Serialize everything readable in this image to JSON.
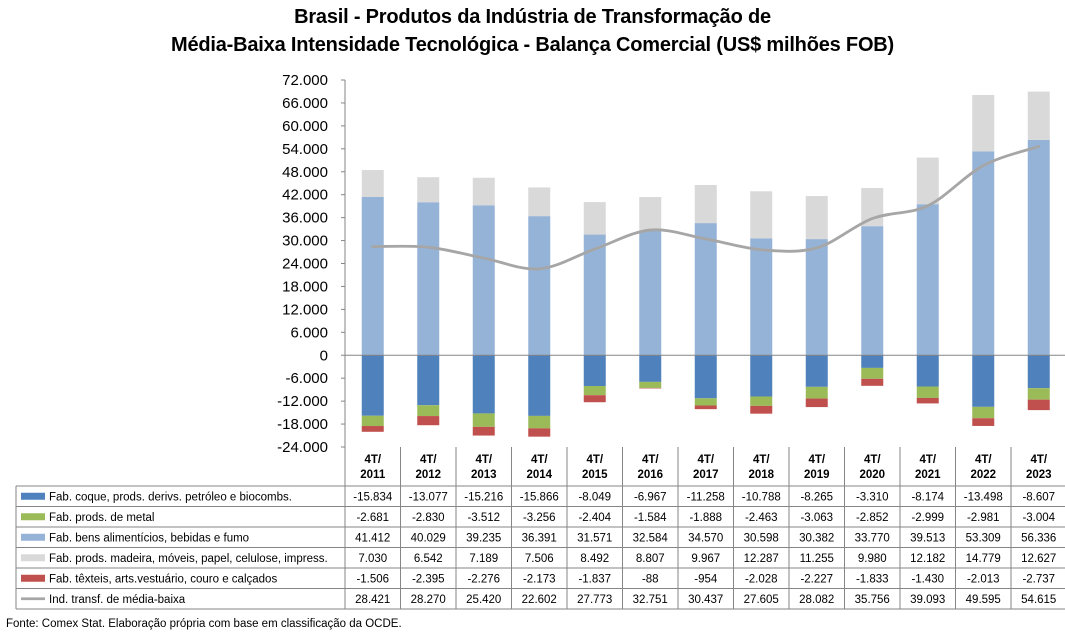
{
  "title_line1": "Brasil - Produtos da Indústria de Transformação de",
  "title_line2": "Média-Baixa Intensidade Tecnológica - Balança Comercial (US$ milhões FOB)",
  "source": "Fonte: Comex Stat. Elaboração própria com base em classificação da OCDE.",
  "chart_data": {
    "type": "bar",
    "stacked": true,
    "categories": [
      [
        "4T/",
        "2011"
      ],
      [
        "4T/",
        "2012"
      ],
      [
        "4T/",
        "2013"
      ],
      [
        "4T/",
        "2014"
      ],
      [
        "4T/",
        "2015"
      ],
      [
        "4T/",
        "2016"
      ],
      [
        "4T/",
        "2017"
      ],
      [
        "4T/",
        "2018"
      ],
      [
        "4T/",
        "2019"
      ],
      [
        "4T/",
        "2020"
      ],
      [
        "4T/",
        "2021"
      ],
      [
        "4T/",
        "2022"
      ],
      [
        "4T/",
        "2023"
      ]
    ],
    "ylim": [
      -24000,
      72000
    ],
    "yticks": [
      72000,
      66000,
      60000,
      54000,
      48000,
      42000,
      36000,
      30000,
      24000,
      18000,
      12000,
      6000,
      0,
      -6000,
      -12000,
      -18000,
      -24000
    ],
    "ytick_labels": [
      "72.000",
      "66.000",
      "60.000",
      "54.000",
      "48.000",
      "42.000",
      "36.000",
      "30.000",
      "24.000",
      "18.000",
      "12.000",
      "6.000",
      "0",
      "-6.000",
      "-12.000",
      "-18.000",
      "-24.000"
    ],
    "series": [
      {
        "name": "Fab. coque, prods. derivs. petróleo e biocombs.",
        "kind": "bar",
        "color": "#4f81bd",
        "values": [
          -15834,
          -13077,
          -15216,
          -15866,
          -8049,
          -6967,
          -11258,
          -10788,
          -8265,
          -3310,
          -8174,
          -13498,
          -8607
        ],
        "labels": [
          "-15.834",
          "-13.077",
          "-15.216",
          "-15.866",
          "-8.049",
          "-6.967",
          "-11.258",
          "-10.788",
          "-8.265",
          "-3.310",
          "-8.174",
          "-13.498",
          "-8.607"
        ]
      },
      {
        "name": "Fab. prods. de metal",
        "kind": "bar",
        "color": "#9bbb59",
        "values": [
          -2681,
          -2830,
          -3512,
          -3256,
          -2404,
          -1584,
          -1888,
          -2463,
          -3063,
          -2852,
          -2999,
          -2981,
          -3004
        ],
        "labels": [
          "-2.681",
          "-2.830",
          "-3.512",
          "-3.256",
          "-2.404",
          "-1.584",
          "-1.888",
          "-2.463",
          "-3.063",
          "-2.852",
          "-2.999",
          "-2.981",
          "-3.004"
        ]
      },
      {
        "name": "Fab. bens alimentícios, bebidas e fumo",
        "kind": "bar",
        "color": "#95b3d7",
        "values": [
          41412,
          40029,
          39235,
          36391,
          31571,
          32584,
          34570,
          30598,
          30382,
          33770,
          39513,
          53309,
          56336
        ],
        "labels": [
          "41.412",
          "40.029",
          "39.235",
          "36.391",
          "31.571",
          "32.584",
          "34.570",
          "30.598",
          "30.382",
          "33.770",
          "39.513",
          "53.309",
          "56.336"
        ]
      },
      {
        "name": "Fab. prods. madeira, móveis, papel, celulose, impress.",
        "kind": "bar",
        "color": "#d9d9d9",
        "values": [
          7030,
          6542,
          7189,
          7506,
          8492,
          8807,
          9967,
          12287,
          11255,
          9980,
          12182,
          14779,
          12627
        ],
        "labels": [
          "7.030",
          "6.542",
          "7.189",
          "7.506",
          "8.492",
          "8.807",
          "9.967",
          "12.287",
          "11.255",
          "9.980",
          "12.182",
          "14.779",
          "12.627"
        ]
      },
      {
        "name": "Fab. têxteis, arts.vestuário, couro e calçados",
        "kind": "bar",
        "color": "#c0504d",
        "values": [
          -1506,
          -2395,
          -2276,
          -2173,
          -1837,
          -88,
          -954,
          -2028,
          -2227,
          -1833,
          -1430,
          -2013,
          -2737
        ],
        "labels": [
          "-1.506",
          "-2.395",
          "-2.276",
          "-2.173",
          "-1.837",
          "-88",
          "-954",
          "-2.028",
          "-2.227",
          "-1.833",
          "-1.430",
          "-2.013",
          "-2.737"
        ]
      },
      {
        "name": "Ind. transf. de média-baixa",
        "kind": "line",
        "color": "#a6a6a6",
        "values": [
          28421,
          28270,
          25420,
          22602,
          27773,
          32751,
          30437,
          27605,
          28082,
          35756,
          39093,
          49595,
          54615
        ],
        "labels": [
          "28.421",
          "28.270",
          "25.420",
          "22.602",
          "27.773",
          "32.751",
          "30.437",
          "27.605",
          "28.082",
          "35.756",
          "39.093",
          "49.595",
          "54.615"
        ]
      }
    ]
  }
}
